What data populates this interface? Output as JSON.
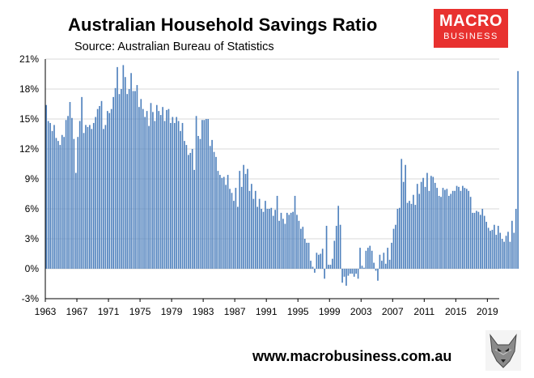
{
  "header": {
    "title": "Australian Household Savings Ratio",
    "subtitle": "Source: Australian Bureau of Statistics"
  },
  "logo": {
    "line1": "MACRO",
    "line2": "BUSINESS",
    "bg_color": "#e8312f"
  },
  "footer": {
    "url": "www.macrobusiness.com.au",
    "mascot_icon": "wolf-head-icon"
  },
  "chart_data": {
    "type": "bar",
    "title": "Australian Household Savings Ratio",
    "xlabel": "",
    "ylabel": "",
    "bar_color": "#4f81bd",
    "grid": true,
    "ylim": [
      -3,
      21
    ],
    "xlim": [
      1963,
      2020.5
    ],
    "yticks": [
      "-3%",
      "0%",
      "3%",
      "6%",
      "9%",
      "12%",
      "15%",
      "18%",
      "21%"
    ],
    "xticks": [
      "1963",
      "1967",
      "1971",
      "1975",
      "1979",
      "1983",
      "1987",
      "1991",
      "1995",
      "1999",
      "2003",
      "2007",
      "2011",
      "2015",
      "2019"
    ],
    "x_start": "1963 Q1",
    "frequency": "quarterly",
    "values": [
      16.4,
      14.8,
      14.6,
      13.8,
      14.4,
      13.1,
      12.8,
      12.4,
      13.4,
      13.2,
      14.9,
      15.3,
      16.7,
      15.1,
      13.0,
      9.6,
      13.2,
      14.8,
      17.2,
      13.6,
      14.4,
      14.2,
      14.4,
      14.0,
      14.6,
      15.2,
      16.0,
      16.3,
      16.8,
      14.0,
      14.4,
      15.8,
      15.6,
      16.0,
      17.2,
      18.1,
      20.2,
      17.5,
      18.0,
      20.4,
      19.2,
      17.5,
      18.0,
      19.6,
      17.8,
      17.8,
      18.4,
      16.2,
      17.0,
      16.0,
      15.2,
      15.8,
      14.3,
      16.6,
      15.7,
      14.8,
      16.4,
      15.8,
      15.4,
      16.2,
      14.8,
      15.9,
      16.0,
      14.6,
      15.2,
      14.6,
      15.2,
      14.8,
      13.8,
      14.6,
      12.8,
      12.4,
      11.4,
      11.6,
      12.0,
      9.9,
      15.3,
      13.3,
      13.0,
      14.9,
      14.9,
      15.0,
      15.0,
      12.3,
      12.9,
      11.7,
      11.2,
      9.8,
      9.4,
      9.1,
      9.2,
      8.4,
      9.4,
      8.0,
      7.6,
      6.8,
      8.1,
      6.2,
      9.8,
      8.2,
      10.4,
      9.5,
      10.0,
      7.8,
      8.5,
      7.0,
      7.8,
      6.2,
      7.0,
      6.0,
      5.7,
      6.8,
      6.0,
      6.0,
      6.1,
      5.3,
      5.9,
      7.3,
      4.8,
      5.6,
      5.0,
      4.5,
      5.6,
      5.4,
      5.6,
      5.7,
      7.3,
      5.4,
      4.8,
      4.0,
      4.2,
      3.0,
      2.6,
      2.6,
      0.8,
      0.2,
      -0.4,
      1.6,
      1.4,
      1.5,
      2.0,
      -1.0,
      4.3,
      0.4,
      0.4,
      1.0,
      2.8,
      4.3,
      6.3,
      4.4,
      -1.4,
      -0.8,
      -1.7,
      -0.7,
      -0.5,
      -0.5,
      -0.8,
      -0.5,
      -1.0,
      2.1,
      0.3,
      0.1,
      1.8,
      2.1,
      2.3,
      1.8,
      0.6,
      -0.2,
      -1.2,
      1.4,
      0.8,
      1.6,
      0.5,
      2.1,
      0.9,
      2.6,
      4.0,
      4.4,
      6.0,
      6.1,
      11.0,
      8.7,
      10.4,
      6.6,
      6.8,
      6.5,
      7.4,
      6.4,
      8.5,
      7.5,
      8.7,
      9.1,
      8.2,
      9.6,
      7.8,
      9.3,
      9.2,
      8.6,
      8.1,
      7.3,
      7.2,
      8.1,
      7.9,
      8.0,
      7.3,
      7.5,
      7.8,
      7.8,
      8.3,
      8.2,
      7.8,
      8.3,
      8.1,
      8.0,
      7.8,
      7.2,
      5.6,
      5.6,
      5.8,
      5.7,
      5.4,
      6.0,
      5.3,
      4.7,
      4.1,
      3.8,
      3.9,
      4.4,
      3.4,
      4.3,
      3.6,
      3.0,
      2.7,
      3.3,
      3.7,
      2.7,
      4.8,
      3.6,
      6.0,
      19.8
    ]
  }
}
